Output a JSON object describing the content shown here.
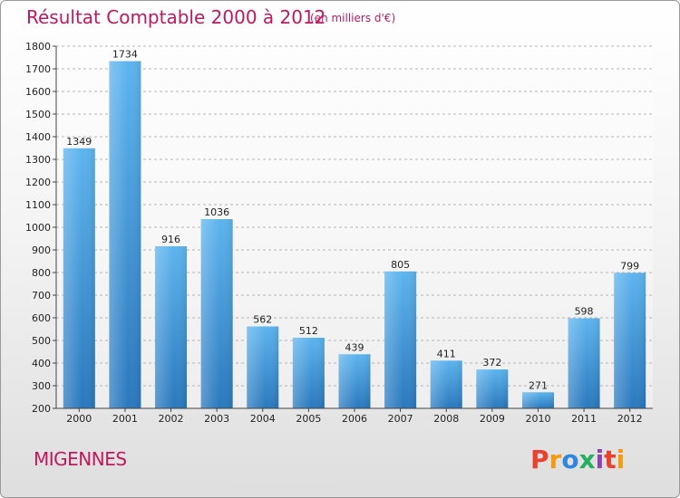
{
  "chart_data": {
    "type": "bar",
    "title": "Résultat Comptable 2000 à 2012",
    "subtitle": "(en milliers d'€)",
    "categories": [
      "2000",
      "2001",
      "2002",
      "2003",
      "2004",
      "2005",
      "2006",
      "2007",
      "2008",
      "2009",
      "2010",
      "2011",
      "2012"
    ],
    "values": [
      1349,
      1734,
      916,
      1036,
      562,
      512,
      439,
      805,
      411,
      372,
      271,
      598,
      799
    ],
    "ylim": [
      200,
      1800
    ],
    "yticks": [
      200,
      300,
      400,
      500,
      600,
      700,
      800,
      900,
      1000,
      1100,
      1200,
      1300,
      1400,
      1500,
      1600,
      1700,
      1800
    ],
    "xlabel": "",
    "ylabel": "",
    "grid": "horizontal-dashed",
    "bar_color": "#3a8fd6"
  },
  "location": "MIGENNES",
  "logo": {
    "letters": [
      "P",
      "r",
      "o",
      "x",
      "i",
      "t",
      "i"
    ],
    "colors": [
      "#e8412c",
      "#f39c12",
      "#2e86de",
      "#27ae60",
      "#8e44ad",
      "#e8412c",
      "#f39c12"
    ]
  }
}
